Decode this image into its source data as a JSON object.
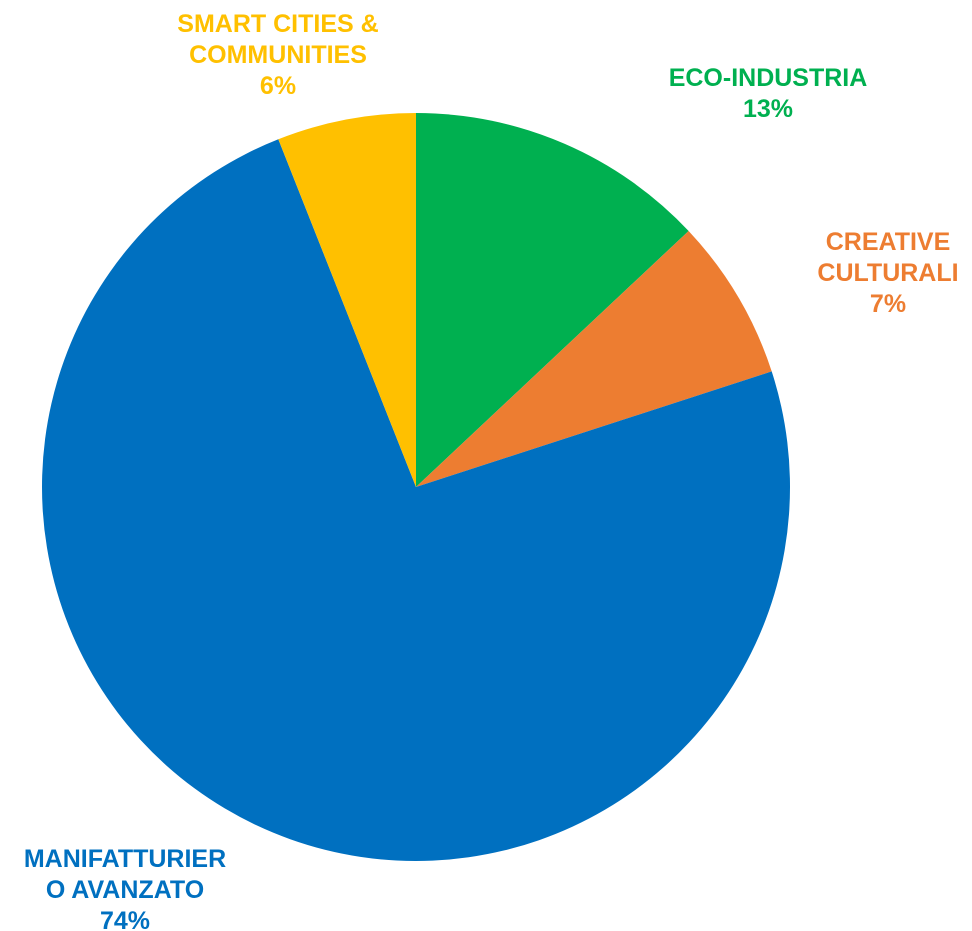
{
  "chart_data": {
    "type": "pie",
    "title": "",
    "start_angle_deg": 0,
    "direction": "clockwise",
    "slices": [
      {
        "label_lines": [
          "ECO-INDUSTRIA"
        ],
        "percent_label": "13%",
        "value": 13,
        "color": "#00B050"
      },
      {
        "label_lines": [
          "CREATIVE",
          "CULTURALI"
        ],
        "percent_label": "7%",
        "value": 7,
        "color": "#ED7D31"
      },
      {
        "label_lines": [
          "MANIFATTURIER",
          "O AVANZATO"
        ],
        "percent_label": "74%",
        "value": 74,
        "color": "#0070C0"
      },
      {
        "label_lines": [
          "SMART CITIES &",
          "COMMUNITIES"
        ],
        "percent_label": "6%",
        "value": 6,
        "color": "#FFC000"
      }
    ]
  }
}
